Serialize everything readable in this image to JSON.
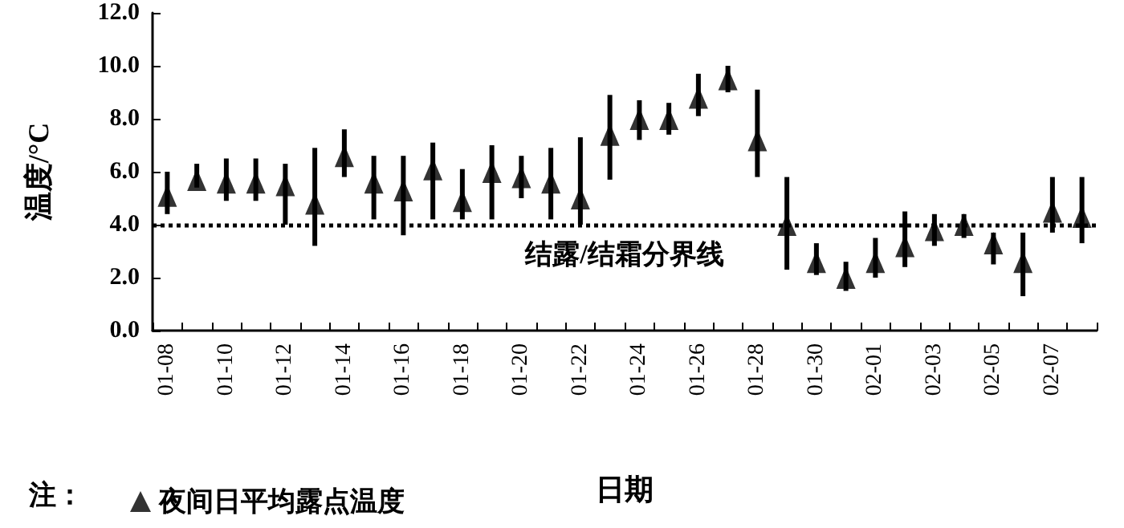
{
  "chart_data": {
    "type": "scatter",
    "xlabel": "日期",
    "ylabel": "温度/°C",
    "categories": [
      "01-08",
      null,
      "01-10",
      null,
      "01-12",
      null,
      "01-14",
      null,
      "01-16",
      null,
      "01-18",
      null,
      "01-20",
      null,
      "01-22",
      null,
      "01-24",
      null,
      "01-26",
      null,
      "01-28",
      null,
      "01-30",
      null,
      "02-01",
      null,
      "02-03",
      null,
      "02-05",
      null,
      "02-07",
      null
    ],
    "series": [
      {
        "name": "夜间日平均露点温度",
        "color": "#000000",
        "marker": "triangle",
        "values": [
          5.1,
          5.7,
          5.6,
          5.6,
          5.5,
          4.8,
          6.6,
          5.6,
          5.3,
          6.1,
          4.9,
          6.0,
          5.8,
          5.6,
          5.0,
          7.4,
          8.0,
          8.0,
          8.8,
          9.5,
          7.2,
          4.0,
          2.6,
          2.0,
          2.6,
          3.2,
          3.8,
          4.0,
          3.3,
          2.6,
          4.5,
          4.3
        ],
        "errors": [
          [
            4.4,
            6.0
          ],
          [
            5.4,
            6.3
          ],
          [
            4.9,
            6.5
          ],
          [
            4.9,
            6.5
          ],
          [
            4.0,
            6.3
          ],
          [
            3.2,
            6.9
          ],
          [
            5.8,
            7.6
          ],
          [
            4.2,
            6.6
          ],
          [
            3.6,
            6.6
          ],
          [
            4.2,
            7.1
          ],
          [
            4.2,
            6.1
          ],
          [
            4.2,
            7.0
          ],
          [
            5.0,
            6.6
          ],
          [
            4.2,
            6.9
          ],
          [
            4.0,
            7.3
          ],
          [
            5.7,
            8.9
          ],
          [
            7.2,
            8.7
          ],
          [
            7.4,
            8.6
          ],
          [
            8.1,
            9.7
          ],
          [
            9.0,
            10.0
          ],
          [
            5.8,
            9.1
          ],
          [
            2.3,
            5.8
          ],
          [
            2.1,
            3.3
          ],
          [
            1.5,
            2.6
          ],
          [
            2.0,
            3.5
          ],
          [
            2.4,
            4.5
          ],
          [
            3.2,
            4.4
          ],
          [
            3.5,
            4.4
          ],
          [
            2.5,
            3.7
          ],
          [
            1.3,
            3.7
          ],
          [
            3.7,
            5.8
          ],
          [
            3.3,
            5.8
          ]
        ]
      }
    ],
    "ylim": [
      0,
      12
    ],
    "yticks": [
      {
        "value": 0,
        "label": "0.0"
      },
      {
        "value": 2,
        "label": "2.0"
      },
      {
        "value": 4,
        "label": "4.0"
      },
      {
        "value": 6,
        "label": "6.0"
      },
      {
        "value": 8,
        "label": "8.0"
      },
      {
        "value": 10,
        "label": "10.0"
      },
      {
        "value": 12,
        "label": "12.0"
      }
    ],
    "ref_lines": [
      {
        "axis": "y",
        "value": 4,
        "label": "结露/结霜分界线",
        "color": "#000000",
        "line_style": "dotted"
      }
    ],
    "annotations": [
      "注："
    ],
    "legend": "bottom",
    "grid": false
  }
}
